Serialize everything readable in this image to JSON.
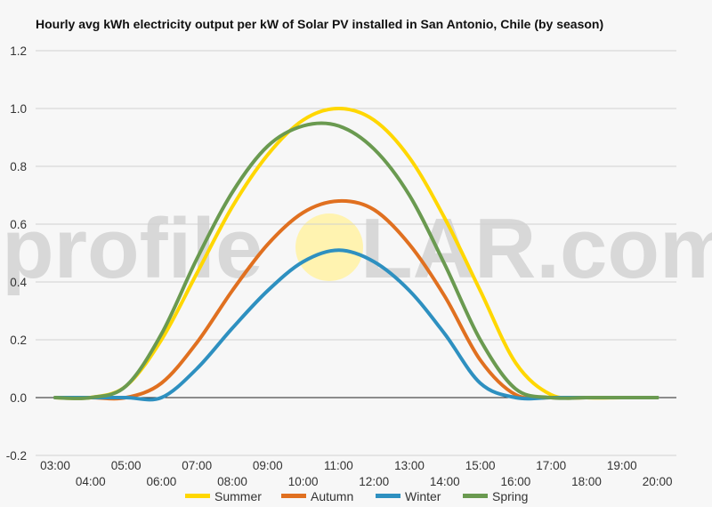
{
  "chart_data": {
    "type": "line",
    "title": "Hourly avg kWh electricity output per kW of Solar PV installed in San Antonio, Chile (by season)",
    "xlabel": "",
    "ylabel": "",
    "x": [
      "03:00",
      "04:00",
      "05:00",
      "06:00",
      "07:00",
      "08:00",
      "09:00",
      "10:00",
      "11:00",
      "12:00",
      "13:00",
      "14:00",
      "15:00",
      "16:00",
      "17:00",
      "18:00",
      "19:00",
      "20:00"
    ],
    "ylim": [
      -0.2,
      1.2
    ],
    "yticks": [
      -0.2,
      0.0,
      0.2,
      0.4,
      0.6,
      0.8,
      1.0,
      1.2
    ],
    "ytick_labels": [
      "-0.2",
      "0.0",
      "0.2",
      "0.4",
      "0.6",
      "0.8",
      "1.0",
      "1.2"
    ],
    "grid": true,
    "legend_position": "bottom",
    "series": [
      {
        "name": "Summer",
        "color": "#FFD700",
        "values": [
          0.0,
          0.0,
          0.04,
          0.2,
          0.43,
          0.66,
          0.84,
          0.96,
          1.0,
          0.96,
          0.83,
          0.62,
          0.37,
          0.12,
          0.01,
          0.0,
          0.0,
          0.0
        ]
      },
      {
        "name": "Autumn",
        "color": "#E07020",
        "values": [
          0.0,
          0.0,
          0.0,
          0.05,
          0.19,
          0.37,
          0.53,
          0.64,
          0.68,
          0.65,
          0.53,
          0.35,
          0.13,
          0.01,
          0.0,
          0.0,
          0.0,
          0.0
        ]
      },
      {
        "name": "Winter",
        "color": "#2E90C0",
        "values": [
          0.0,
          0.0,
          0.0,
          0.0,
          0.1,
          0.24,
          0.37,
          0.47,
          0.51,
          0.47,
          0.37,
          0.22,
          0.05,
          0.0,
          0.0,
          0.0,
          0.0,
          0.0
        ]
      },
      {
        "name": "Spring",
        "color": "#6A9A50",
        "values": [
          0.0,
          0.0,
          0.04,
          0.22,
          0.48,
          0.71,
          0.87,
          0.94,
          0.94,
          0.86,
          0.7,
          0.46,
          0.2,
          0.03,
          0.0,
          0.0,
          0.0,
          0.0
        ]
      }
    ]
  },
  "watermark": {
    "text_left": "profile",
    "text_right": "LAR.com",
    "sun_color": "#FFF3B0"
  }
}
